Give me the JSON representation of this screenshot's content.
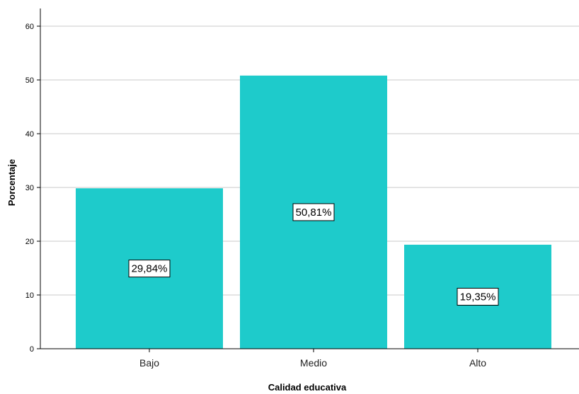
{
  "chart_data": {
    "type": "bar",
    "categories": [
      "Bajo",
      "Medio",
      "Alto"
    ],
    "values": [
      29.84,
      50.81,
      19.35
    ],
    "data_labels": [
      "29,84%",
      "50,81%",
      "19,35%"
    ],
    "xlabel": "Calidad educativa",
    "ylabel": "Porcentaje",
    "ylim": [
      0,
      60
    ],
    "yticks": [
      "0",
      "10",
      "20",
      "30",
      "40",
      "50",
      "60"
    ],
    "grid": true,
    "bar_color": "#1ECBCB"
  }
}
